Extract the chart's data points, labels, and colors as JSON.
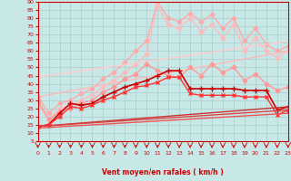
{
  "xlabel": "Vent moyen/en rafales ( km/h )",
  "xlim": [
    0,
    23
  ],
  "ylim": [
    5,
    90
  ],
  "yticks": [
    5,
    10,
    15,
    20,
    25,
    30,
    35,
    40,
    45,
    50,
    55,
    60,
    65,
    70,
    75,
    80,
    85,
    90
  ],
  "xticks": [
    0,
    1,
    2,
    3,
    4,
    5,
    6,
    7,
    8,
    9,
    10,
    11,
    12,
    13,
    14,
    15,
    16,
    17,
    18,
    19,
    20,
    21,
    22,
    23
  ],
  "background_color": "#c8e8e8",
  "grid_color": "#aacccc",
  "lines": [
    {
      "x": [
        0,
        1,
        2,
        3,
        4,
        5,
        6,
        7,
        8,
        9,
        10,
        11,
        12,
        13,
        14,
        15,
        16,
        17,
        18,
        19,
        20,
        21,
        22,
        23
      ],
      "y": [
        32,
        22,
        28,
        30,
        34,
        37,
        43,
        47,
        53,
        60,
        66,
        90,
        80,
        78,
        83,
        78,
        82,
        74,
        80,
        66,
        74,
        64,
        60,
        63
      ],
      "color": "#ffaaaa",
      "lw": 1.0,
      "marker": "D",
      "ms": 2.5
    },
    {
      "x": [
        0,
        1,
        2,
        3,
        4,
        5,
        6,
        7,
        8,
        9,
        10,
        11,
        12,
        13,
        14,
        15,
        16,
        17,
        18,
        19,
        20,
        21,
        22,
        23
      ],
      "y": [
        28,
        18,
        25,
        27,
        30,
        33,
        38,
        42,
        47,
        52,
        58,
        88,
        76,
        74,
        80,
        72,
        76,
        68,
        76,
        60,
        68,
        60,
        56,
        60
      ],
      "color": "#ffbbbb",
      "lw": 1.0,
      "marker": "D",
      "ms": 2.5
    },
    {
      "x": [
        0,
        23
      ],
      "y": [
        44,
        66
      ],
      "color": "#ffcccc",
      "lw": 1.0,
      "marker": null,
      "ms": 0
    },
    {
      "x": [
        0,
        23
      ],
      "y": [
        32,
        60
      ],
      "color": "#ffbbbb",
      "lw": 1.0,
      "marker": null,
      "ms": 0
    },
    {
      "x": [
        0,
        1,
        2,
        3,
        4,
        5,
        6,
        7,
        8,
        9,
        10,
        11,
        12,
        13,
        14,
        15,
        16,
        17,
        18,
        19,
        20,
        21,
        22,
        23
      ],
      "y": [
        30,
        18,
        23,
        25,
        28,
        30,
        35,
        38,
        43,
        46,
        52,
        48,
        45,
        44,
        50,
        45,
        52,
        47,
        50,
        42,
        46,
        40,
        36,
        38
      ],
      "color": "#ff9999",
      "lw": 1.0,
      "marker": "D",
      "ms": 2.5
    },
    {
      "x": [
        0,
        1,
        2,
        3,
        4,
        5,
        6,
        7,
        8,
        9,
        10,
        11,
        12,
        13,
        14,
        15,
        16,
        17,
        18,
        19,
        20,
        21,
        22,
        23
      ],
      "y": [
        14,
        15,
        22,
        28,
        27,
        28,
        32,
        35,
        38,
        40,
        42,
        45,
        48,
        48,
        37,
        37,
        37,
        37,
        37,
        36,
        36,
        36,
        24,
        26
      ],
      "color": "#cc0000",
      "lw": 1.2,
      "marker": "+",
      "ms": 4
    },
    {
      "x": [
        0,
        1,
        2,
        3,
        4,
        5,
        6,
        7,
        8,
        9,
        10,
        11,
        12,
        13,
        14,
        15,
        16,
        17,
        18,
        19,
        20,
        21,
        22,
        23
      ],
      "y": [
        14,
        15,
        20,
        26,
        25,
        27,
        30,
        32,
        35,
        38,
        39,
        41,
        44,
        44,
        34,
        33,
        33,
        33,
        33,
        32,
        32,
        32,
        21,
        24
      ],
      "color": "#ff3333",
      "lw": 1.0,
      "marker": "x",
      "ms": 3
    },
    {
      "x": [
        0,
        23
      ],
      "y": [
        14,
        26
      ],
      "color": "#cc3333",
      "lw": 1.0,
      "marker": null,
      "ms": 0
    },
    {
      "x": [
        0,
        23
      ],
      "y": [
        14,
        24
      ],
      "color": "#dd4444",
      "lw": 1.0,
      "marker": null,
      "ms": 0
    },
    {
      "x": [
        0,
        23
      ],
      "y": [
        13,
        22
      ],
      "color": "#ee5555",
      "lw": 1.0,
      "marker": null,
      "ms": 0
    }
  ]
}
